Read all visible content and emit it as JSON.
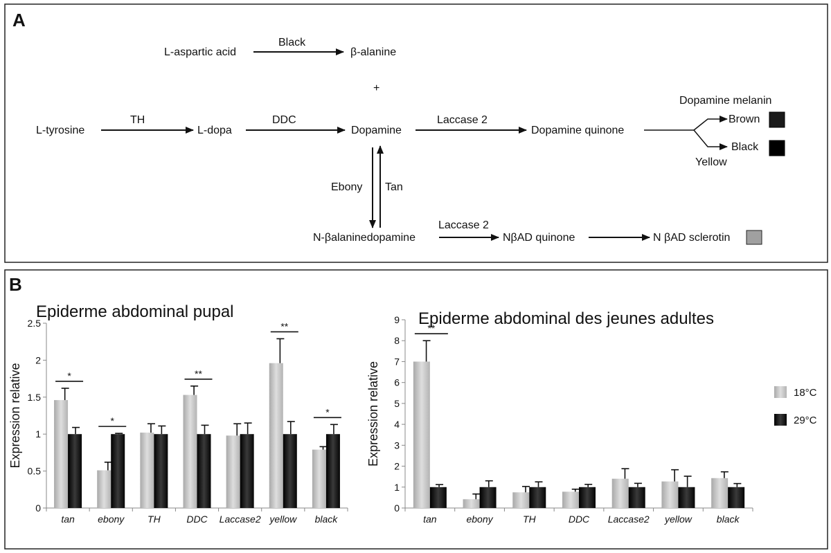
{
  "panels": {
    "a": "A",
    "b": "B"
  },
  "pathway": {
    "aspartic": "L-aspartic acid",
    "black_enzyme": "Black",
    "alanine": "β-alanine",
    "plus": "+",
    "tyrosine": "L-tyrosine",
    "th": "TH",
    "ldopa": "L-dopa",
    "ddc": "DDC",
    "dopamine": "Dopamine",
    "laccase_top": "Laccase 2",
    "quinone": "Dopamine quinone",
    "melanin": "Dopamine melanin",
    "brown": "Brown",
    "black": "Black",
    "yellow": "Yellow",
    "ebony": "Ebony",
    "tan": "Tan",
    "nbad": "N-βalaninedopamine",
    "laccase_bottom": "Laccase 2",
    "nbad_quinone": "NβAD quinone",
    "sclerotin": "N βAD sclerotin"
  },
  "colors": {
    "box_brown": "#1a1a1a",
    "box_black": "#000000",
    "box_sclerotin": "#a0a0a0",
    "bar_18": "#c4c4c4",
    "bar_29": "#161616"
  },
  "legend": {
    "s18": "18°C",
    "s29": "29°C"
  },
  "chart_data": [
    {
      "type": "bar",
      "title": "Epiderme abdominal pupal",
      "ylabel": "Expression relative",
      "categories": [
        "tan",
        "ebony",
        "TH",
        "DDC",
        "Laccase2",
        "yellow",
        "black"
      ],
      "ylim": [
        0,
        2.5
      ],
      "yticks": [
        "0",
        "0.5",
        "1",
        "1.5",
        "2",
        "2.5"
      ],
      "series": [
        {
          "name": "18°C",
          "values": [
            1.46,
            0.51,
            1.02,
            1.53,
            0.98,
            1.96,
            0.79
          ],
          "errors": [
            0.16,
            0.11,
            0.12,
            0.12,
            0.16,
            0.33,
            0.04
          ]
        },
        {
          "name": "29°C",
          "values": [
            1.0,
            1.0,
            1.0,
            1.0,
            1.0,
            1.0,
            1.0
          ],
          "errors": [
            0.09,
            0.01,
            0.11,
            0.12,
            0.15,
            0.17,
            0.13
          ]
        }
      ],
      "significance": [
        "*",
        "*",
        "",
        "**",
        "",
        "**",
        "*"
      ]
    },
    {
      "type": "bar",
      "title": "Epiderme abdominal des jeunes adultes",
      "ylabel": "Expression relative",
      "categories": [
        "tan",
        "ebony",
        "TH",
        "DDC",
        "Laccase2",
        "yellow",
        "black"
      ],
      "ylim": [
        0,
        9
      ],
      "yticks": [
        "0",
        "1",
        "2",
        "3",
        "4",
        "5",
        "6",
        "7",
        "8",
        "9"
      ],
      "series": [
        {
          "name": "18°C",
          "values": [
            7.0,
            0.42,
            0.75,
            0.78,
            1.4,
            1.27,
            1.43
          ],
          "errors": [
            1.0,
            0.25,
            0.28,
            0.12,
            0.48,
            0.56,
            0.3
          ]
        },
        {
          "name": "29°C",
          "values": [
            1.0,
            1.0,
            1.0,
            1.0,
            1.0,
            1.0,
            1.0
          ],
          "errors": [
            0.12,
            0.3,
            0.25,
            0.13,
            0.18,
            0.52,
            0.17
          ]
        }
      ],
      "significance": [
        "**",
        "",
        "",
        "",
        "",
        "",
        ""
      ]
    }
  ]
}
